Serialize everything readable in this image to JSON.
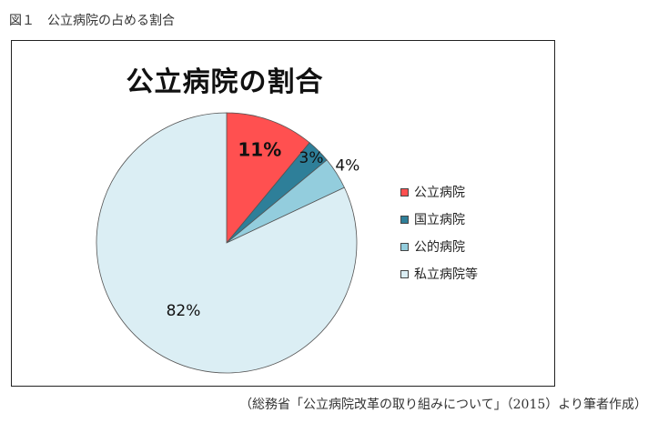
{
  "figure_caption": "図１　公立病院の占める割合",
  "source_note": "（総務省「公立病院改革の取り組みについて」（2015）より筆者作成）",
  "chart_data": {
    "type": "pie",
    "title": "公立病院の割合",
    "slices": [
      {
        "label": "公立病院",
        "value": 11,
        "display": "11%",
        "color": "#ff5050",
        "label_color": "#111111",
        "bold": true
      },
      {
        "label": "国立病院",
        "value": 3,
        "display": "3%",
        "color": "#2e7f99",
        "label_color": "#111111",
        "bold": false
      },
      {
        "label": "公的病院",
        "value": 4,
        "display": "4%",
        "color": "#93cddd",
        "label_color": "#111111",
        "bold": false
      },
      {
        "label": "私立病院等",
        "value": 82,
        "display": "82%",
        "color": "#dbeef4",
        "label_color": "#111111",
        "bold": false
      }
    ],
    "legend_placement": "right"
  }
}
